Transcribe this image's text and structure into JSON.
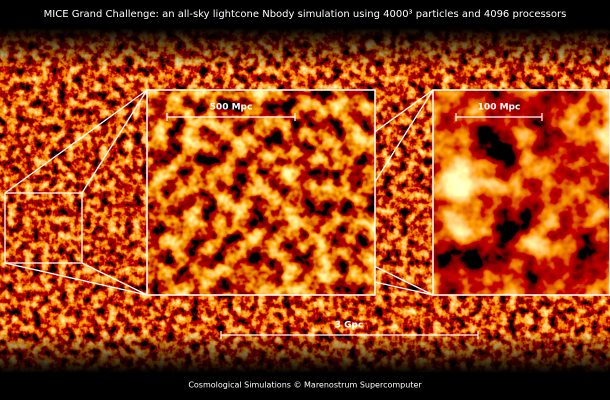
{
  "header": {
    "title": "MICE Grand Challenge: an all-sky lightcone Nbody simulation using 4000³ particles and 4096 processors"
  },
  "scale_bars": [
    {
      "label": "500 Mpc"
    },
    {
      "label": "100 Mpc"
    },
    {
      "label": "3 Gpc"
    }
  ],
  "footer": {
    "credit": "Cosmological Simulations © Marenostrum Supercomputer"
  }
}
